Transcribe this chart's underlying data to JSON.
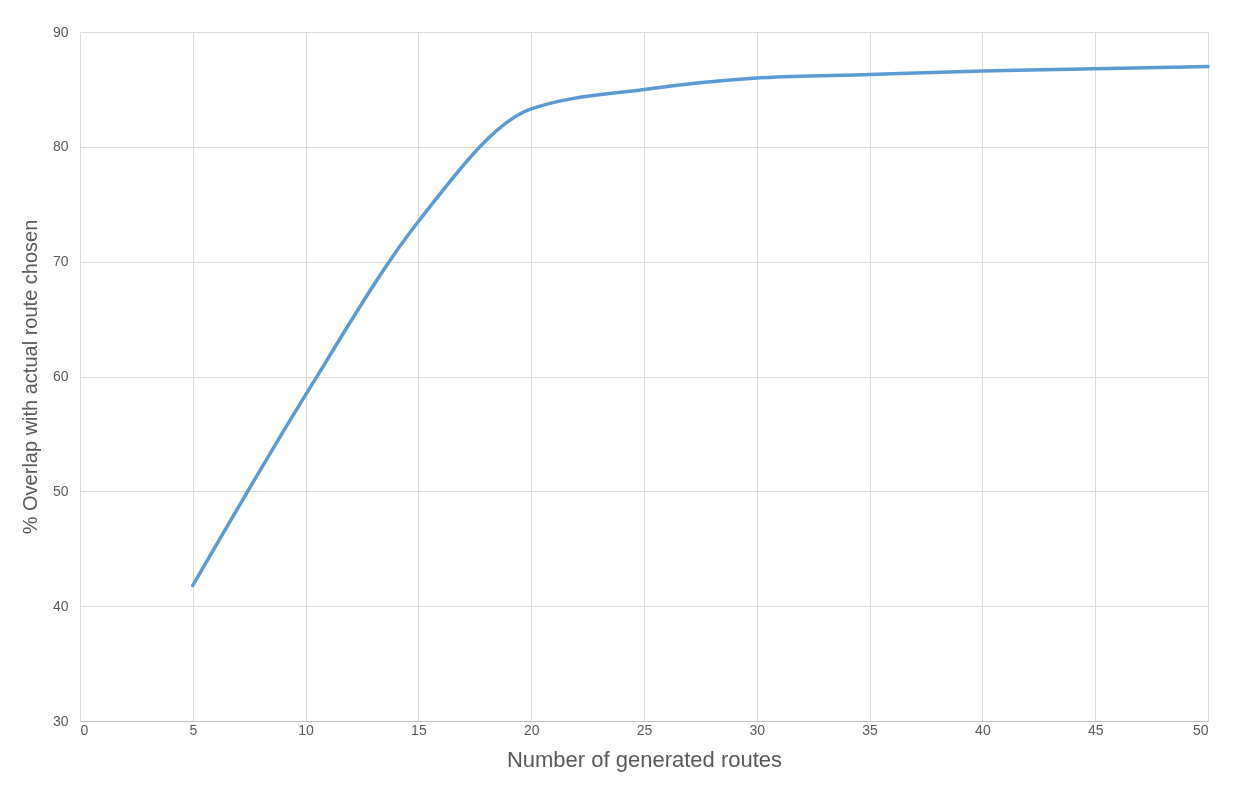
{
  "chart_data": {
    "type": "line",
    "xlabel": "Number of generated routes",
    "ylabel": "% Overlap with actual route chosen",
    "x": [
      5,
      10,
      15,
      20,
      25,
      30,
      35,
      40,
      45,
      50
    ],
    "series": [
      {
        "color": "#5b9bd5",
        "values": [
          41.8,
          58.4,
          73.5,
          83.3,
          85.0,
          86.0,
          86.3,
          86.6,
          86.8,
          87.0
        ]
      }
    ],
    "xlim": [
      0,
      50
    ],
    "xticks": [
      0,
      5,
      10,
      15,
      20,
      25,
      30,
      35,
      40,
      45,
      50
    ],
    "ylim": [
      30,
      90
    ],
    "yticks": [
      30,
      40,
      50,
      60,
      70,
      80,
      90
    ],
    "grid": true,
    "marker": "none",
    "line_style": "solid"
  }
}
